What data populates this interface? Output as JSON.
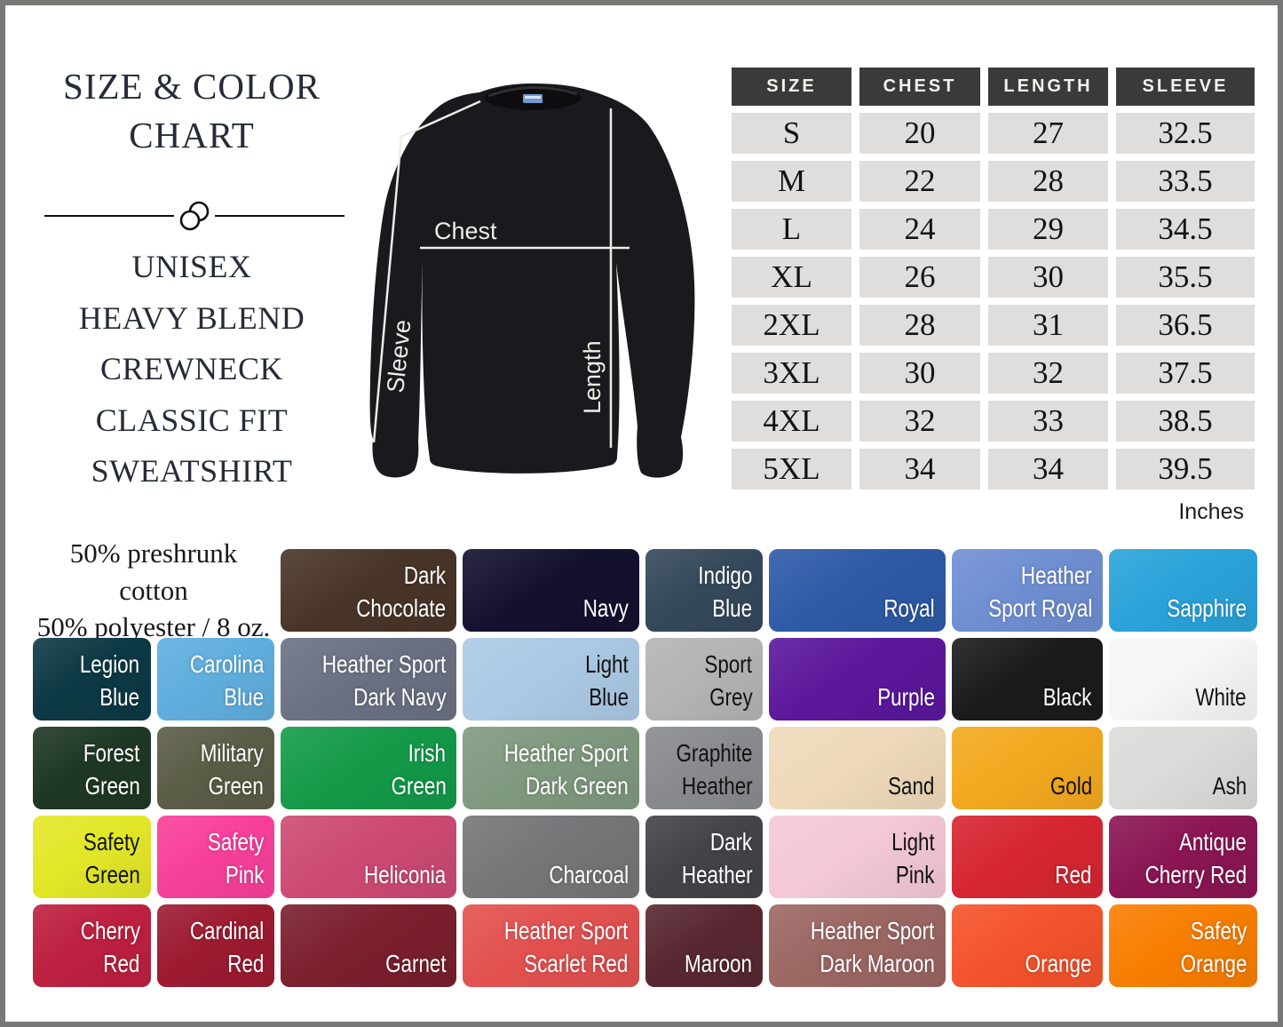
{
  "header": {
    "title_line1": "SIZE & COLOR",
    "title_line2": "CHART",
    "subtitle_lines": [
      "UNISEX",
      "HEAVY BLEND",
      "CREWNECK",
      "CLASSIC FIT",
      "SWEATSHIRT"
    ]
  },
  "diagram": {
    "chest_label": "Chest",
    "length_label": "Length",
    "sleeve_label": "Sleeve"
  },
  "size_table": {
    "headers": [
      "SIZE",
      "CHEST",
      "LENGTH",
      "SLEEVE"
    ],
    "rows": [
      [
        "S",
        "20",
        "27",
        "32.5"
      ],
      [
        "M",
        "22",
        "28",
        "33.5"
      ],
      [
        "L",
        "24",
        "29",
        "34.5"
      ],
      [
        "XL",
        "26",
        "30",
        "35.5"
      ],
      [
        "2XL",
        "28",
        "31",
        "36.5"
      ],
      [
        "3XL",
        "30",
        "32",
        "37.5"
      ],
      [
        "4XL",
        "32",
        "33",
        "38.5"
      ],
      [
        "5XL",
        "34",
        "34",
        "39.5"
      ]
    ],
    "unit_note": "Inches"
  },
  "fabric_note": {
    "line1": "50% preshrunk cotton",
    "line2": "50% polyester / 8 oz."
  },
  "colors": {
    "swatches": [
      {
        "name": "Dark Chocolate",
        "line1": "Dark",
        "line2": "Chocolate",
        "bg": "#493528",
        "fg": "#ffffff"
      },
      {
        "name": "Navy",
        "line1": "",
        "line2": "Navy",
        "bg": "#141130",
        "fg": "#ffffff"
      },
      {
        "name": "Indigo Blue",
        "line1": "Indigo",
        "line2": "Blue",
        "bg": "#35495c",
        "fg": "#ffffff"
      },
      {
        "name": "Royal",
        "line1": "",
        "line2": "Royal",
        "bg": "#2d5aa7",
        "fg": "#ffffff"
      },
      {
        "name": "Heather Sport Royal",
        "line1": "Heather",
        "line2": "Sport Royal",
        "bg": "#6f8fd2",
        "fg": "#ffffff"
      },
      {
        "name": "Sapphire",
        "line1": "",
        "line2": "Sapphire",
        "bg": "#2aa3da",
        "fg": "#ffffff"
      },
      {
        "name": "Legion Blue",
        "line1": "Legion",
        "line2": "Blue",
        "bg": "#0c3945",
        "fg": "#ffffff"
      },
      {
        "name": "Carolina Blue",
        "line1": "Carolina",
        "line2": "Blue",
        "bg": "#60aede",
        "fg": "#ffffff"
      },
      {
        "name": "Heather Sport Dark Navy",
        "line1": "Heather Sport",
        "line2": "Dark Navy",
        "bg": "#6b7183",
        "fg": "#ffffff"
      },
      {
        "name": "Light Blue",
        "line1": "Light",
        "line2": "Blue",
        "bg": "#abc9e4",
        "fg": "#121212"
      },
      {
        "name": "Sport Grey",
        "line1": "Sport",
        "line2": "Grey",
        "bg": "#b4b3b5",
        "fg": "#121212"
      },
      {
        "name": "Purple",
        "line1": "",
        "line2": "Purple",
        "bg": "#5b179c",
        "fg": "#ffffff"
      },
      {
        "name": "Black",
        "line1": "",
        "line2": "Black",
        "bg": "#1b1b1d",
        "fg": "#ffffff"
      },
      {
        "name": "White",
        "line1": "",
        "line2": "White",
        "bg": "#f6f6f6",
        "fg": "#121212"
      },
      {
        "name": "Forest Green",
        "line1": "Forest",
        "line2": "Green",
        "bg": "#1f3826",
        "fg": "#ffffff"
      },
      {
        "name": "Military Green",
        "line1": "Military",
        "line2": "Green",
        "bg": "#5c5d47",
        "fg": "#ffffff"
      },
      {
        "name": "Irish Green",
        "line1": "Irish",
        "line2": "Green",
        "bg": "#149a49",
        "fg": "#ffffff"
      },
      {
        "name": "Heather Sport Dark Green",
        "line1": "Heather Sport",
        "line2": "Dark Green",
        "bg": "#7f997f",
        "fg": "#ffffff"
      },
      {
        "name": "Graphite Heather",
        "line1": "Graphite",
        "line2": "Heather",
        "bg": "#8a8b8f",
        "fg": "#121212"
      },
      {
        "name": "Sand",
        "line1": "",
        "line2": "Sand",
        "bg": "#efd9ba",
        "fg": "#121212"
      },
      {
        "name": "Gold",
        "line1": "",
        "line2": "Gold",
        "bg": "#f3a91f",
        "fg": "#121212"
      },
      {
        "name": "Ash",
        "line1": "",
        "line2": "Ash",
        "bg": "#dbdbd9",
        "fg": "#121212"
      },
      {
        "name": "Safety Green",
        "line1": "Safety",
        "line2": "Green",
        "bg": "#e2e728",
        "fg": "#121212"
      },
      {
        "name": "Safety Pink",
        "line1": "Safety",
        "line2": "Pink",
        "bg": "#f8409a",
        "fg": "#ffffff"
      },
      {
        "name": "Heliconia",
        "line1": "",
        "line2": "Heliconia",
        "bg": "#cd4a72",
        "fg": "#ffffff"
      },
      {
        "name": "Charcoal",
        "line1": "",
        "line2": "Charcoal",
        "bg": "#767578",
        "fg": "#ffffff"
      },
      {
        "name": "Dark Heather",
        "line1": "Dark",
        "line2": "Heather",
        "bg": "#454348",
        "fg": "#ffffff"
      },
      {
        "name": "Light Pink",
        "line1": "Light",
        "line2": "Pink",
        "bg": "#f4c8d6",
        "fg": "#121212"
      },
      {
        "name": "Red",
        "line1": "",
        "line2": "Red",
        "bg": "#d62631",
        "fg": "#ffffff"
      },
      {
        "name": "Antique Cherry Red",
        "line1": "Antique",
        "line2": "Cherry Red",
        "bg": "#8b1653",
        "fg": "#ffffff"
      },
      {
        "name": "Cherry Red",
        "line1": "Cherry",
        "line2": "Red",
        "bg": "#bd2040",
        "fg": "#ffffff"
      },
      {
        "name": "Cardinal Red",
        "line1": "Cardinal",
        "line2": "Red",
        "bg": "#9d1b31",
        "fg": "#ffffff"
      },
      {
        "name": "Garnet",
        "line1": "",
        "line2": "Garnet",
        "bg": "#7b1f2d",
        "fg": "#ffffff"
      },
      {
        "name": "Heather Sport Scarlet Red",
        "line1": "Heather Sport",
        "line2": "Scarlet Red",
        "bg": "#e25150",
        "fg": "#ffffff"
      },
      {
        "name": "Maroon",
        "line1": "",
        "line2": "Maroon",
        "bg": "#582832",
        "fg": "#ffffff"
      },
      {
        "name": "Heather Sport Dark Maroon",
        "line1": "Heather Sport",
        "line2": "Dark Maroon",
        "bg": "#9b6763",
        "fg": "#ffffff"
      },
      {
        "name": "Orange",
        "line1": "",
        "line2": "Orange",
        "bg": "#f4532c",
        "fg": "#ffffff"
      },
      {
        "name": "Safety Orange",
        "line1": "Safety",
        "line2": "Orange",
        "bg": "#f87e02",
        "fg": "#ffffff"
      }
    ]
  },
  "chart_data": {
    "type": "table",
    "title": "Size & Color Chart",
    "columns": [
      "SIZE",
      "CHEST",
      "LENGTH",
      "SLEEVE"
    ],
    "rows": [
      [
        "S",
        20,
        27,
        32.5
      ],
      [
        "M",
        22,
        28,
        33.5
      ],
      [
        "L",
        24,
        29,
        34.5
      ],
      [
        "XL",
        26,
        30,
        35.5
      ],
      [
        "2XL",
        28,
        31,
        36.5
      ],
      [
        "3XL",
        30,
        32,
        37.5
      ],
      [
        "4XL",
        32,
        33,
        38.5
      ],
      [
        "5XL",
        34,
        34,
        39.5
      ]
    ],
    "units": "Inches"
  }
}
